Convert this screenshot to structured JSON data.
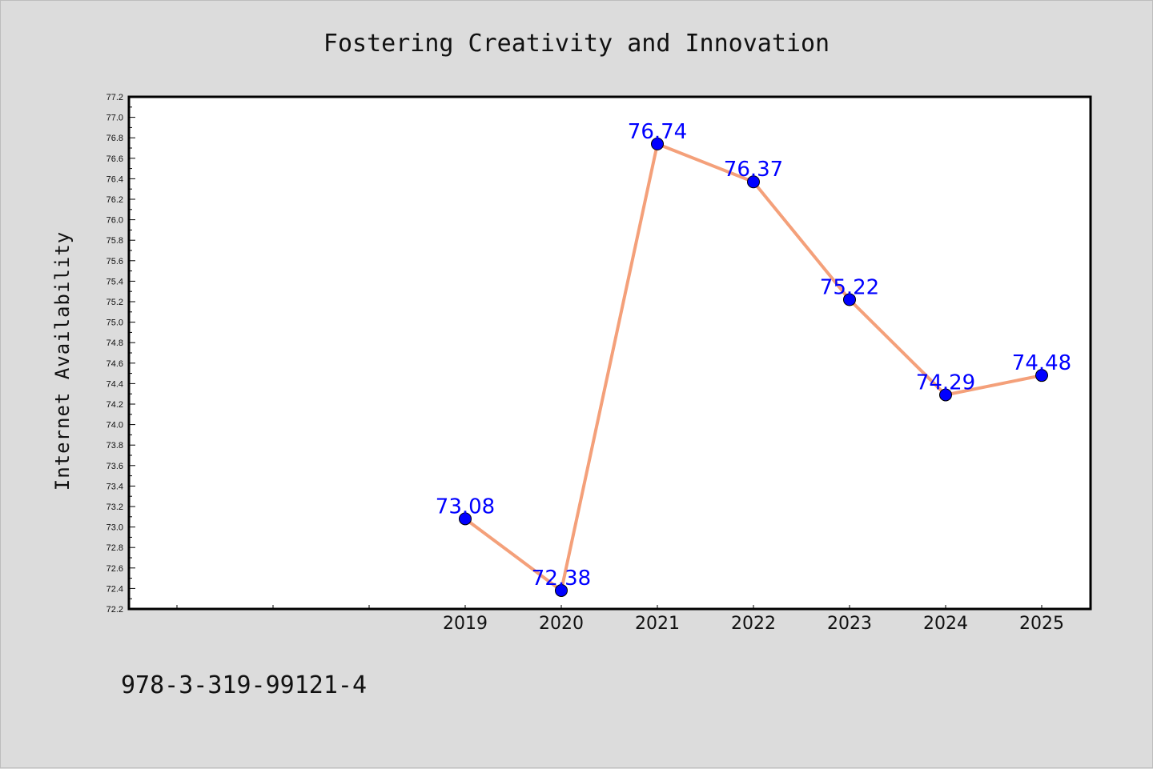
{
  "chart_data": {
    "type": "line",
    "title": "Fostering Creativity and Innovation",
    "xlabel": "",
    "ylabel": "Internet Availability",
    "categories": [
      "2019",
      "2020",
      "2021",
      "2022",
      "2023",
      "2024",
      "2025"
    ],
    "series": [
      {
        "values": [
          73.08,
          72.38,
          76.74,
          76.37,
          75.22,
          74.29,
          74.48
        ],
        "line_color": "#f4a07a",
        "marker_color": "#0000ff"
      }
    ],
    "data_labels": [
      "73.08",
      "72.38",
      "76.74",
      "76.37",
      "75.22",
      "74.29",
      "74.48"
    ],
    "ylim": [
      72.2,
      77.2
    ],
    "y_ticks": [
      "72.2",
      "72.4",
      "72.6",
      "72.8",
      "73.0",
      "73.2",
      "73.4",
      "73.6",
      "73.8",
      "74.0",
      "74.2",
      "74.4",
      "74.6",
      "74.8",
      "75.0",
      "75.2",
      "75.4",
      "75.6",
      "75.8",
      "76.0",
      "76.2",
      "76.4",
      "76.6",
      "76.8",
      "77.0",
      "77.2"
    ],
    "x_slots_before_data": 3,
    "grid": false,
    "legend": "none",
    "label_color": "#0000ff"
  },
  "footer": {
    "isbn": "978-3-319-99121-4"
  }
}
